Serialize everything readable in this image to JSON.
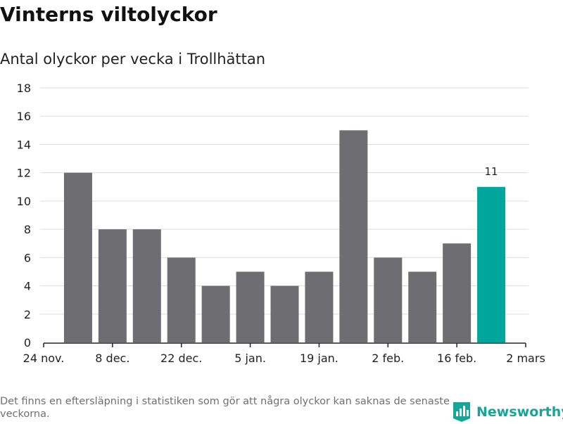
{
  "title": "Vinterns viltolyckor",
  "subtitle": "Antal olyckor per vecka i Trollhättan",
  "footnote": "Det finns en eftersläpning i statistiken som gör att några olyckor kan saknas de senaste veckorna.",
  "brand": {
    "name": "Newsworthy",
    "color": "#17a598"
  },
  "colors": {
    "bar": "#6d6d72",
    "highlight": "#00a59b",
    "grid": "#dddddd",
    "axis": "#222222"
  },
  "chart_data": {
    "type": "bar",
    "title": "Vinterns viltolyckor",
    "subtitle": "Antal olyckor per vecka i Trollhättan",
    "xlabel": "",
    "ylabel": "",
    "x_tick_labels": [
      "24 nov.",
      "8 dec.",
      "22 dec.",
      "5 jan.",
      "19 jan.",
      "2 feb.",
      "16 feb.",
      "2 mars"
    ],
    "y_ticks": [
      0,
      2,
      4,
      6,
      8,
      10,
      12,
      14,
      16,
      18
    ],
    "ylim": [
      0,
      18
    ],
    "grid": true,
    "values": [
      12,
      8,
      8,
      6,
      4,
      5,
      4,
      5,
      15,
      6,
      5,
      7,
      11
    ],
    "highlight_index": 12,
    "data_labels": [
      {
        "index": 12,
        "text": "11"
      }
    ]
  }
}
